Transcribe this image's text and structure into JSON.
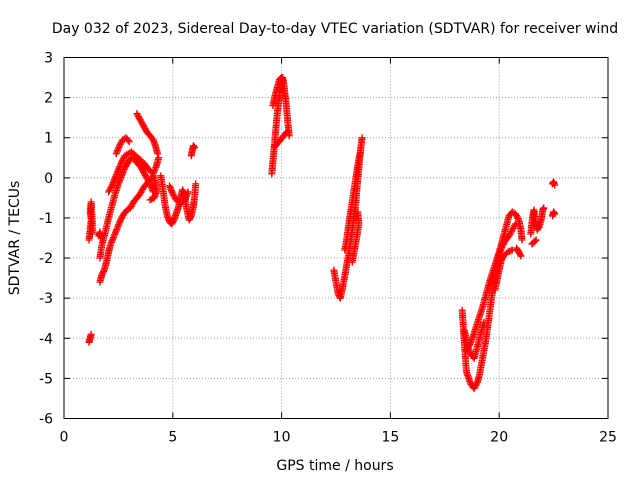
{
  "chart_data": {
    "type": "scatter",
    "title": "Day 032 of 2023, Sidereal Day-to-day VTEC variation (SDTVAR) for receiver wind",
    "xlabel": "GPS time / hours",
    "ylabel": "SDTVAR / TECUs",
    "xlim": [
      0,
      25
    ],
    "ylim": [
      -6,
      3
    ],
    "xticks": [
      0,
      5,
      10,
      15,
      20,
      25
    ],
    "yticks": [
      -6,
      -5,
      -4,
      -3,
      -2,
      -1,
      0,
      1,
      2,
      3
    ],
    "grid": true,
    "marker": "+",
    "color": "#ff0000",
    "series": [
      {
        "name": "SDTVAR",
        "segments": [
          [
            [
              1.15,
              -1.55
            ],
            [
              1.2,
              -1.3
            ],
            [
              1.25,
              -1.05
            ],
            [
              1.2,
              -0.85
            ],
            [
              1.25,
              -0.6
            ],
            [
              1.3,
              -1.1
            ],
            [
              1.3,
              -1.4
            ]
          ],
          [
            [
              1.15,
              -4.1
            ],
            [
              1.2,
              -4.0
            ],
            [
              1.25,
              -3.9
            ]
          ],
          [
            [
              1.65,
              -2.6
            ],
            [
              1.75,
              -2.4
            ],
            [
              1.85,
              -2.3
            ],
            [
              1.95,
              -2.1
            ],
            [
              2.05,
              -1.85
            ],
            [
              2.15,
              -1.65
            ],
            [
              2.3,
              -1.45
            ],
            [
              2.45,
              -1.25
            ],
            [
              2.6,
              -1.05
            ],
            [
              2.75,
              -0.9
            ],
            [
              2.9,
              -0.8
            ],
            [
              3.05,
              -0.75
            ],
            [
              3.2,
              -0.6
            ],
            [
              3.35,
              -0.5
            ],
            [
              3.5,
              -0.4
            ],
            [
              3.65,
              -0.25
            ],
            [
              3.8,
              -0.15
            ],
            [
              3.95,
              -0.05
            ],
            [
              4.1,
              0.05
            ],
            [
              4.2,
              -0.15
            ],
            [
              4.25,
              -0.35
            ],
            [
              4.15,
              -0.5
            ],
            [
              3.95,
              -0.55
            ]
          ],
          [
            [
              1.65,
              -2.0
            ],
            [
              1.75,
              -1.65
            ],
            [
              1.9,
              -1.35
            ],
            [
              2.05,
              -1.0
            ],
            [
              2.2,
              -0.7
            ],
            [
              2.35,
              -0.4
            ],
            [
              2.5,
              -0.15
            ],
            [
              2.65,
              0.05
            ],
            [
              2.8,
              0.25
            ],
            [
              2.95,
              0.4
            ],
            [
              3.1,
              0.5
            ],
            [
              3.25,
              0.45
            ],
            [
              3.4,
              0.35
            ],
            [
              3.55,
              0.25
            ],
            [
              3.7,
              0.1
            ],
            [
              3.85,
              -0.05
            ],
            [
              4.0,
              -0.2
            ],
            [
              4.1,
              -0.35
            ]
          ],
          [
            [
              1.6,
              -1.45
            ],
            [
              1.65,
              -1.35
            ],
            [
              1.7,
              -1.5
            ]
          ],
          [
            [
              2.05,
              -0.35
            ],
            [
              2.2,
              -0.2
            ],
            [
              2.35,
              0.0
            ],
            [
              2.5,
              0.2
            ],
            [
              2.65,
              0.4
            ],
            [
              2.8,
              0.55
            ],
            [
              2.95,
              0.6
            ],
            [
              3.1,
              0.65
            ],
            [
              3.3,
              0.55
            ],
            [
              3.5,
              0.45
            ],
            [
              3.7,
              0.35
            ],
            [
              3.9,
              0.2
            ],
            [
              4.1,
              0.1
            ],
            [
              4.25,
              0.3
            ],
            [
              4.35,
              0.5
            ]
          ],
          [
            [
              2.4,
              0.6
            ],
            [
              2.55,
              0.8
            ],
            [
              2.7,
              0.95
            ],
            [
              2.85,
              1.0
            ],
            [
              3.0,
              0.9
            ]
          ],
          [
            [
              3.35,
              1.6
            ],
            [
              3.5,
              1.45
            ],
            [
              3.65,
              1.3
            ],
            [
              3.8,
              1.15
            ],
            [
              3.95,
              1.05
            ],
            [
              4.1,
              0.95
            ],
            [
              4.2,
              0.8
            ],
            [
              4.3,
              0.6
            ]
          ],
          [
            [
              4.45,
              0.05
            ],
            [
              4.55,
              -0.3
            ],
            [
              4.65,
              -0.7
            ],
            [
              4.75,
              -0.95
            ],
            [
              4.85,
              -1.1
            ],
            [
              4.95,
              -1.15
            ],
            [
              5.05,
              -1.05
            ],
            [
              5.15,
              -0.9
            ],
            [
              5.25,
              -0.75
            ],
            [
              5.35,
              -0.5
            ],
            [
              5.45,
              -0.3
            ],
            [
              5.55,
              -0.45
            ],
            [
              5.65,
              -0.8
            ],
            [
              5.75,
              -1.05
            ],
            [
              5.85,
              -0.95
            ],
            [
              5.95,
              -0.7
            ],
            [
              6.0,
              -0.5
            ],
            [
              6.05,
              -0.15
            ]
          ],
          [
            [
              4.85,
              -0.2
            ],
            [
              5.0,
              -0.4
            ],
            [
              5.15,
              -0.55
            ],
            [
              5.35,
              -0.65
            ],
            [
              5.55,
              -0.55
            ],
            [
              5.7,
              -0.35
            ]
          ],
          [
            [
              5.85,
              0.55
            ],
            [
              5.9,
              0.7
            ],
            [
              5.95,
              0.8
            ],
            [
              6.0,
              0.75
            ]
          ],
          [
            [
              9.55,
              0.1
            ],
            [
              9.6,
              0.4
            ],
            [
              9.65,
              0.7
            ],
            [
              9.7,
              1.0
            ],
            [
              9.75,
              1.3
            ],
            [
              9.8,
              1.6
            ],
            [
              9.85,
              1.85
            ],
            [
              9.9,
              2.05
            ],
            [
              9.95,
              2.25
            ],
            [
              10.0,
              2.4
            ],
            [
              10.05,
              2.5
            ],
            [
              10.1,
              2.35
            ],
            [
              10.15,
              2.1
            ],
            [
              10.2,
              1.9
            ],
            [
              10.25,
              1.6
            ],
            [
              10.3,
              1.3
            ],
            [
              10.35,
              1.05
            ]
          ],
          [
            [
              9.6,
              1.8
            ],
            [
              9.7,
              2.05
            ],
            [
              9.8,
              2.25
            ],
            [
              9.9,
              2.45
            ],
            [
              10.0,
              2.5
            ]
          ],
          [
            [
              9.65,
              0.75
            ],
            [
              9.8,
              0.85
            ],
            [
              9.95,
              0.95
            ],
            [
              10.1,
              1.05
            ],
            [
              10.25,
              1.15
            ]
          ],
          [
            [
              12.4,
              -2.3
            ],
            [
              12.5,
              -2.6
            ],
            [
              12.6,
              -2.9
            ],
            [
              12.7,
              -3.0
            ],
            [
              12.8,
              -2.75
            ],
            [
              12.9,
              -2.45
            ],
            [
              13.0,
              -2.15
            ],
            [
              13.1,
              -1.85
            ],
            [
              13.2,
              -1.5
            ],
            [
              13.3,
              -1.1
            ],
            [
              13.4,
              -0.7
            ],
            [
              13.45,
              -0.35
            ],
            [
              13.5,
              -0.05
            ],
            [
              13.55,
              0.25
            ],
            [
              13.6,
              0.55
            ],
            [
              13.65,
              0.8
            ],
            [
              13.7,
              1.0
            ]
          ],
          [
            [
              12.9,
              -1.8
            ],
            [
              13.0,
              -1.5
            ],
            [
              13.1,
              -1.1
            ],
            [
              13.2,
              -0.75
            ],
            [
              13.3,
              -0.4
            ],
            [
              13.4,
              -0.05
            ],
            [
              13.5,
              0.3
            ],
            [
              13.6,
              0.6
            ]
          ],
          [
            [
              13.5,
              -0.85
            ],
            [
              13.55,
              -1.15
            ],
            [
              13.45,
              -1.5
            ],
            [
              13.35,
              -1.8
            ],
            [
              13.25,
              -2.1
            ]
          ],
          [
            [
              18.3,
              -3.3
            ],
            [
              18.35,
              -3.7
            ],
            [
              18.4,
              -4.1
            ],
            [
              18.45,
              -4.5
            ],
            [
              18.5,
              -4.85
            ],
            [
              18.6,
              -5.0
            ],
            [
              18.7,
              -5.15
            ],
            [
              18.85,
              -5.25
            ],
            [
              19.0,
              -5.1
            ],
            [
              19.1,
              -4.9
            ],
            [
              19.2,
              -4.6
            ],
            [
              19.3,
              -4.3
            ],
            [
              19.4,
              -4.0
            ],
            [
              19.5,
              -3.6
            ],
            [
              19.6,
              -3.2
            ],
            [
              19.7,
              -2.8
            ],
            [
              19.8,
              -2.45
            ],
            [
              19.9,
              -2.15
            ],
            [
              20.0,
              -1.9
            ],
            [
              20.15,
              -1.7
            ],
            [
              20.3,
              -1.55
            ],
            [
              20.45,
              -1.45
            ],
            [
              20.6,
              -1.3
            ],
            [
              20.75,
              -1.15
            ]
          ],
          [
            [
              18.5,
              -4.3
            ],
            [
              18.65,
              -4.15
            ],
            [
              18.8,
              -3.95
            ],
            [
              18.95,
              -3.7
            ],
            [
              19.1,
              -3.45
            ],
            [
              19.25,
              -3.2
            ],
            [
              19.4,
              -2.9
            ],
            [
              19.55,
              -2.6
            ],
            [
              19.7,
              -2.35
            ],
            [
              19.85,
              -2.1
            ],
            [
              20.0,
              -1.85
            ],
            [
              20.15,
              -1.55
            ],
            [
              20.3,
              -1.25
            ],
            [
              20.45,
              -0.95
            ],
            [
              20.6,
              -0.85
            ],
            [
              20.75,
              -0.9
            ],
            [
              20.9,
              -1.05
            ],
            [
              21.0,
              -1.3
            ],
            [
              21.05,
              -1.55
            ]
          ],
          [
            [
              18.4,
              -3.8
            ],
            [
              18.55,
              -4.2
            ],
            [
              18.7,
              -4.4
            ],
            [
              18.85,
              -4.5
            ],
            [
              19.0,
              -4.2
            ],
            [
              19.15,
              -3.9
            ],
            [
              19.3,
              -3.6
            ]
          ],
          [
            [
              19.8,
              -2.8
            ],
            [
              19.9,
              -2.55
            ],
            [
              20.0,
              -2.3
            ],
            [
              20.1,
              -2.05
            ],
            [
              20.2,
              -1.95
            ],
            [
              20.4,
              -1.85
            ],
            [
              20.6,
              -1.8
            ]
          ],
          [
            [
              20.8,
              -1.75
            ],
            [
              20.9,
              -1.85
            ],
            [
              21.0,
              -1.95
            ]
          ],
          [
            [
              21.45,
              -1.4
            ],
            [
              21.5,
              -1.15
            ],
            [
              21.55,
              -0.95
            ],
            [
              21.6,
              -0.8
            ],
            [
              21.65,
              -1.05
            ],
            [
              21.75,
              -1.3
            ],
            [
              21.85,
              -1.2
            ],
            [
              21.95,
              -1.0
            ],
            [
              22.0,
              -0.8
            ],
            [
              22.05,
              -0.75
            ]
          ],
          [
            [
              21.5,
              -1.65
            ],
            [
              21.6,
              -1.6
            ],
            [
              21.7,
              -1.55
            ]
          ],
          [
            [
              22.45,
              -0.95
            ],
            [
              22.5,
              -0.85
            ],
            [
              22.55,
              -0.9
            ]
          ],
          [
            [
              22.45,
              -0.15
            ],
            [
              22.5,
              -0.1
            ],
            [
              22.55,
              -0.18
            ]
          ]
        ]
      }
    ]
  }
}
